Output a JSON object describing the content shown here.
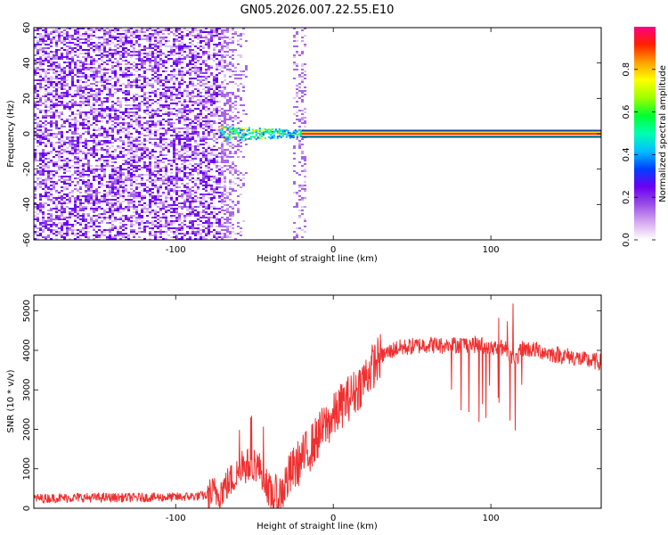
{
  "title": "GN05.2026.007.22.55.E10",
  "chart_data": [
    {
      "type": "heatmap",
      "xlabel": "Height of straight line (km)",
      "ylabel": "Frequency (Hz)",
      "xlim": [
        -190,
        170
      ],
      "ylim": [
        -60,
        60
      ],
      "x_ticks": [
        -100,
        0,
        100
      ],
      "y_ticks": [
        60,
        40,
        20,
        0,
        -20,
        -40,
        -60
      ],
      "colorbar": {
        "label": "Normalized spectral amplitude",
        "range": [
          0,
          1
        ],
        "ticks": [
          0.0,
          0.2,
          0.4,
          0.6,
          0.8
        ],
        "colors": [
          "#ffffff",
          "#d6a8f0",
          "#9a4de8",
          "#6a00f2",
          "#0040ff",
          "#00c0ff",
          "#00ffb0",
          "#00ff30",
          "#a0ff00",
          "#ffff00",
          "#ffa000",
          "#ff2000",
          "#ff0080"
        ]
      },
      "features": {
        "noise_region_x": [
          -190,
          -55
        ],
        "noise_streak_x": [
          -27,
          -18
        ],
        "carrier_frequency_hz": 0,
        "carrier_onset_km": -72,
        "carrier_end_km": 170
      }
    },
    {
      "type": "line",
      "xlabel": "Height of straight line (km)",
      "ylabel": "SNR (10 * v/v)",
      "xlim": [
        -190,
        170
      ],
      "ylim": [
        0,
        5400
      ],
      "x_ticks": [
        -100,
        0,
        100
      ],
      "y_ticks": [
        0,
        1000,
        2000,
        3000,
        4000,
        5000
      ],
      "series": [
        {
          "name": "SNR",
          "color": "#f03030",
          "x": [
            -190,
            -160,
            -130,
            -100,
            -80,
            -72,
            -65,
            -58,
            -50,
            -45,
            -40,
            -35,
            -30,
            -25,
            -20,
            -15,
            -10,
            -5,
            0,
            5,
            10,
            15,
            20,
            25,
            30,
            40,
            50,
            60,
            70,
            80,
            90,
            100,
            110,
            115,
            120,
            130,
            140,
            150,
            160,
            170
          ],
          "y": [
            250,
            270,
            270,
            280,
            320,
            420,
            700,
            1000,
            1150,
            900,
            400,
            200,
            650,
            1000,
            1250,
            1500,
            1800,
            2100,
            2300,
            2600,
            2800,
            3000,
            3300,
            3600,
            3850,
            4050,
            4100,
            4150,
            4120,
            4150,
            4150,
            4100,
            4050,
            3700,
            4050,
            4000,
            3900,
            3850,
            3750,
            3700
          ]
        }
      ]
    }
  ]
}
